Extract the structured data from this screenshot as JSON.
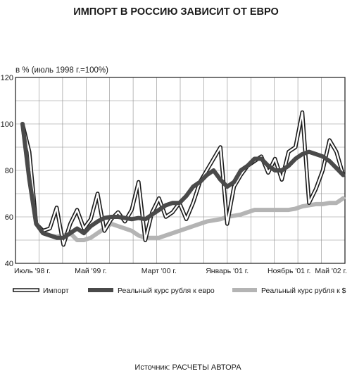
{
  "chart_data": {
    "type": "line",
    "title": "ИМПОРТ В РОССИЮ ЗАВИСИТ ОТ ЕВРО",
    "ylabel": "в % (июль 1998 г.=100%)",
    "ylim": [
      40,
      120
    ],
    "yticks": [
      40,
      60,
      80,
      100,
      120
    ],
    "xticks": [
      {
        "x": "1998-07",
        "label": "Июль '98 г."
      },
      {
        "x": "1999-05",
        "label": "Май '99 г."
      },
      {
        "x": "2000-03",
        "label": "Март '00 г."
      },
      {
        "x": "2001-01",
        "label": "Январь '01 г."
      },
      {
        "x": "2001-11",
        "label": "Ноябрь '01 г."
      },
      {
        "x": "2002-05",
        "label": "Май '02 г."
      }
    ],
    "grid": true,
    "legend": "bottom",
    "x": [
      "1998-07",
      "1998-08",
      "1998-09",
      "1998-10",
      "1998-11",
      "1998-12",
      "1999-01",
      "1999-02",
      "1999-03",
      "1999-04",
      "1999-05",
      "1999-06",
      "1999-07",
      "1999-08",
      "1999-09",
      "1999-10",
      "1999-11",
      "1999-12",
      "2000-01",
      "2000-02",
      "2000-03",
      "2000-04",
      "2000-05",
      "2000-06",
      "2000-07",
      "2000-08",
      "2000-09",
      "2000-10",
      "2000-11",
      "2000-12",
      "2001-01",
      "2001-02",
      "2001-03",
      "2001-04",
      "2001-05",
      "2001-06",
      "2001-07",
      "2001-08",
      "2001-09",
      "2001-10",
      "2001-11",
      "2001-12",
      "2002-01",
      "2002-02",
      "2002-03",
      "2002-04",
      "2002-05",
      "2002-06"
    ],
    "series": [
      {
        "name": "Импорт",
        "color": "#ffffff",
        "outline": "#1a1a1a",
        "values": [
          100,
          88,
          57,
          54,
          55,
          64,
          48,
          57,
          63,
          55,
          59,
          70,
          54,
          59,
          62,
          58,
          63,
          75,
          50,
          62,
          68,
          60,
          62,
          66,
          59,
          66,
          75,
          80,
          85,
          90,
          57,
          73,
          78,
          82,
          84,
          86,
          79,
          85,
          76,
          88,
          90,
          105,
          66,
          72,
          80,
          93,
          88,
          78
        ]
      },
      {
        "name": "Реальный курс рубля к евро",
        "color": "#4a4a4a",
        "values": [
          100,
          76,
          57,
          53,
          52,
          51,
          51,
          53,
          55,
          53,
          56,
          58,
          59.5,
          60,
          60,
          59.5,
          59,
          59.5,
          59,
          61,
          63,
          65,
          66,
          66,
          69,
          73,
          75,
          78,
          80,
          76,
          73,
          75,
          80,
          82,
          85,
          85,
          82,
          80,
          80,
          82,
          85,
          87,
          88,
          87,
          86,
          84,
          81,
          78
        ]
      },
      {
        "name": "Реальный курс рубля к $",
        "color": "#b4b4b4",
        "values": [
          100,
          78,
          57,
          53,
          52,
          51.5,
          52,
          53,
          50,
          50,
          51,
          53,
          55,
          57,
          56,
          55,
          54,
          52,
          51,
          51,
          51,
          52,
          53,
          54,
          55,
          56,
          57,
          58,
          58.5,
          59,
          60,
          60.5,
          61,
          62,
          63,
          63,
          63,
          63,
          63,
          63,
          63.5,
          64.5,
          65,
          65.5,
          65.5,
          66,
          66,
          68
        ]
      }
    ]
  },
  "colors": {
    "grid": "#8c8c8c",
    "frame": "#1a1a1a"
  },
  "footer": {
    "source": "Источник: РАСЧЕТЫ АВТОРА"
  }
}
